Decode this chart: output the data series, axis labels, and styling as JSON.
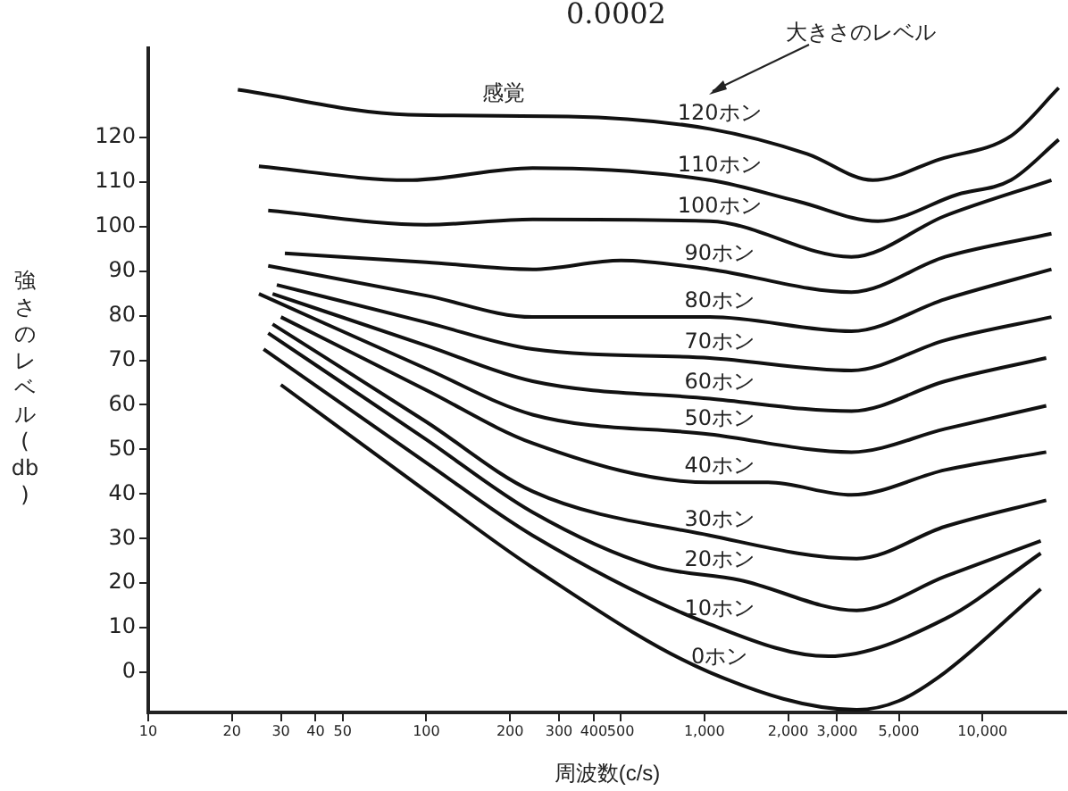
{
  "chart_data": {
    "type": "line",
    "title": "0.0002",
    "xlabel": "周波数(c/s)",
    "ylabel": "強さのレベル(db)",
    "log": "x",
    "grid": false,
    "legend": false,
    "marker": "none",
    "line_style": "solid",
    "xlim": [
      10,
      20000
    ],
    "ylim": [
      -9,
      140
    ],
    "xticks": [
      10,
      20,
      30,
      40,
      50,
      100,
      200,
      300,
      400,
      500,
      {
        "value": 1000,
        "label": "1,000"
      },
      {
        "value": 2000,
        "label": "2,000"
      },
      {
        "value": 3000,
        "label": "3,000"
      },
      {
        "value": 5000,
        "label": "5,000"
      },
      {
        "value": 10000,
        "label": "10,000"
      }
    ],
    "yticks": [
      0,
      10,
      20,
      30,
      40,
      50,
      60,
      70,
      80,
      90,
      100,
      110,
      120
    ],
    "annotations": [
      "感覚",
      "大きさのレベル"
    ],
    "series": [
      {
        "name": "120ホン",
        "color": "#111111",
        "x": [
          21,
          86,
          324,
          1045,
          2340,
          4030,
          7030,
          12650,
          18800
        ],
        "values": [
          130.7,
          125.1,
          124.7,
          121.9,
          116.3,
          110.4,
          115.1,
          120.3,
          131.1
        ]
      },
      {
        "name": "110ホン",
        "color": "#111111",
        "x": [
          25,
          86,
          241,
          1045,
          2180,
          4210,
          8150,
          12650,
          18800
        ],
        "values": [
          113.5,
          110.4,
          113.1,
          110.4,
          105.6,
          101.2,
          107.2,
          110.4,
          119.5
        ]
      },
      {
        "name": "100ホン",
        "color": "#111111",
        "x": [
          27,
          100,
          241,
          1045,
          3380,
          7340,
          17700
        ],
        "values": [
          103.6,
          100.4,
          101.6,
          101.2,
          93.2,
          102.4,
          110.4
        ]
      },
      {
        "name": "90ホン",
        "color": "#111111",
        "x": [
          31,
          100,
          241,
          501,
          1045,
          3380,
          7340,
          17700
        ],
        "values": [
          94.0,
          92.0,
          90.4,
          92.4,
          90.4,
          85.3,
          93.2,
          98.4
        ]
      },
      {
        "name": "80ホン",
        "color": "#111111",
        "x": [
          27,
          100,
          241,
          1045,
          3380,
          7340,
          17700
        ],
        "values": [
          91.2,
          84.5,
          79.7,
          79.7,
          76.5,
          83.7,
          90.4
        ]
      },
      {
        "name": "70ホン",
        "color": "#111111",
        "x": [
          29,
          100,
          241,
          1045,
          3380,
          7340,
          17700
        ],
        "values": [
          86.9,
          78.5,
          72.5,
          70.5,
          67.7,
          74.5,
          79.7
        ]
      },
      {
        "name": "60ホン",
        "color": "#111111",
        "x": [
          28,
          100,
          241,
          1045,
          3380,
          7340,
          16950
        ],
        "values": [
          84.9,
          73.3,
          65.3,
          61.4,
          58.6,
          65.3,
          70.5
        ]
      },
      {
        "name": "50ホン",
        "color": "#111111",
        "x": [
          25,
          100,
          241,
          1045,
          3380,
          7340,
          16950
        ],
        "values": [
          84.9,
          68.1,
          57.8,
          53.4,
          49.4,
          54.6,
          59.8
        ]
      },
      {
        "name": "40ホン",
        "color": "#111111",
        "x": [
          30,
          100,
          241,
          1045,
          1694,
          3380,
          7340,
          16950
        ],
        "values": [
          79.7,
          63.3,
          51.4,
          42.6,
          42.6,
          39.8,
          45.4,
          49.4
        ]
      },
      {
        "name": "30ホン",
        "color": "#111111",
        "x": [
          28,
          100,
          241,
          1045,
          3530,
          7340,
          16950
        ],
        "values": [
          78.1,
          56.2,
          40.6,
          30.7,
          25.5,
          32.7,
          38.6
        ]
      },
      {
        "name": "20ホン",
        "color": "#111111",
        "x": [
          27,
          100,
          241,
          644,
          1340,
          3530,
          7340,
          16200
        ],
        "values": [
          76.1,
          52.2,
          35.9,
          23.9,
          20.7,
          13.9,
          21.5,
          29.5
        ]
      },
      {
        "name": "10ホン",
        "color": "#111111",
        "x": [
          26,
          100,
          241,
          1045,
          2793,
          7340,
          16200
        ],
        "values": [
          72.5,
          47.0,
          30.7,
          10.8,
          3.6,
          12.0,
          26.7
        ]
      },
      {
        "name": "0ホン",
        "color": "#111111",
        "x": [
          30,
          100,
          241,
          1045,
          3530,
          5010,
          7340,
          16200
        ],
        "values": [
          64.5,
          40.6,
          23.5,
          0,
          -8.4,
          -6.4,
          0,
          18.7
        ]
      }
    ]
  }
}
